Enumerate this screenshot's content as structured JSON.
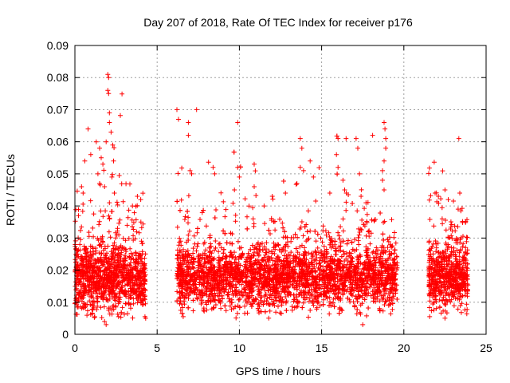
{
  "chart_data": {
    "type": "scatter",
    "title": "Day 207 of 2018, Rate Of TEC Index for receiver p176",
    "xlabel": "GPS time / hours",
    "ylabel": "ROTI / TECUs",
    "xlim": [
      0,
      25
    ],
    "ylim": [
      0,
      0.09
    ],
    "x_ticks": [
      0,
      5,
      10,
      15,
      20,
      25
    ],
    "y_ticks": [
      0,
      0.01,
      0.02,
      0.03,
      0.04,
      0.05,
      0.06,
      0.07,
      0.08,
      0.09
    ],
    "x_tick_labels": [
      "0",
      "5",
      "10",
      "15",
      "20",
      "25"
    ],
    "y_tick_labels": [
      "0",
      "0.01",
      "0.02",
      "0.03",
      "0.04",
      "0.05",
      "0.06",
      "0.07",
      "0.08",
      "0.09"
    ],
    "grid": true,
    "marker": "+",
    "color": "#ff0000",
    "series": [
      {
        "name": "ROTI",
        "segments": [
          {
            "x_start": 0.0,
            "x_end": 4.3,
            "baseline": 0.017,
            "spread": 0.009
          },
          {
            "x_start": 6.2,
            "x_end": 19.6,
            "baseline": 0.017,
            "spread": 0.008
          },
          {
            "x_start": 21.5,
            "x_end": 23.9,
            "baseline": 0.017,
            "spread": 0.008
          }
        ],
        "points": [
          [
            0.6,
            0.054
          ],
          [
            0.4,
            0.046
          ],
          [
            0.5,
            0.044
          ],
          [
            0.8,
            0.064
          ],
          [
            1.3,
            0.06
          ],
          [
            1.5,
            0.058
          ],
          [
            1.6,
            0.055
          ],
          [
            1.7,
            0.053
          ],
          [
            1.8,
            0.046
          ],
          [
            1.4,
            0.05
          ],
          [
            1.5,
            0.047
          ],
          [
            1.9,
            0.06
          ],
          [
            2.0,
            0.081
          ],
          [
            2.05,
            0.08
          ],
          [
            2.0,
            0.076
          ],
          [
            2.05,
            0.075
          ],
          [
            2.1,
            0.069
          ],
          [
            2.1,
            0.066
          ],
          [
            2.2,
            0.063
          ],
          [
            2.3,
            0.059
          ],
          [
            2.35,
            0.054
          ],
          [
            2.25,
            0.049
          ],
          [
            2.4,
            0.044
          ],
          [
            2.1,
            0.041
          ],
          [
            3.8,
            0.043
          ],
          [
            4.0,
            0.042
          ],
          [
            3.5,
            0.04
          ],
          [
            0.2,
            0.03
          ],
          [
            0.3,
            0.028
          ],
          [
            6.2,
            0.07
          ],
          [
            6.3,
            0.067
          ],
          [
            6.9,
            0.066
          ],
          [
            6.9,
            0.062
          ],
          [
            7.4,
            0.07
          ],
          [
            7.0,
            0.051
          ],
          [
            7.1,
            0.05
          ],
          [
            8.4,
            0.052
          ],
          [
            8.5,
            0.05
          ],
          [
            9.9,
            0.066
          ],
          [
            9.9,
            0.052
          ],
          [
            10.0,
            0.049
          ],
          [
            9.7,
            0.045
          ],
          [
            10.9,
            0.053
          ],
          [
            10.9,
            0.046
          ],
          [
            13.7,
            0.061
          ],
          [
            13.8,
            0.058
          ],
          [
            13.7,
            0.052
          ],
          [
            13.9,
            0.051
          ],
          [
            13.5,
            0.047
          ],
          [
            14.3,
            0.054
          ],
          [
            14.5,
            0.049
          ],
          [
            16.0,
            0.061
          ],
          [
            15.9,
            0.056
          ],
          [
            16.0,
            0.052
          ],
          [
            16.3,
            0.048
          ],
          [
            16.4,
            0.045
          ],
          [
            16.5,
            0.044
          ],
          [
            17.1,
            0.061
          ],
          [
            17.2,
            0.058
          ],
          [
            17.3,
            0.05
          ],
          [
            18.1,
            0.062
          ],
          [
            18.8,
            0.066
          ],
          [
            18.85,
            0.064
          ],
          [
            18.9,
            0.061
          ],
          [
            18.9,
            0.058
          ],
          [
            18.8,
            0.054
          ],
          [
            18.7,
            0.051
          ],
          [
            18.7,
            0.048
          ],
          [
            18.8,
            0.045
          ],
          [
            17.7,
            0.041
          ],
          [
            17.4,
            0.043
          ],
          [
            15.5,
            0.044
          ],
          [
            12.8,
            0.044
          ],
          [
            12.0,
            0.043
          ],
          [
            11.5,
            0.04
          ],
          [
            21.9,
            0.044
          ],
          [
            22.1,
            0.043
          ],
          [
            22.5,
            0.045
          ],
          [
            22.7,
            0.042
          ],
          [
            23.4,
            0.044
          ],
          [
            23.3,
            0.039
          ],
          [
            1.9,
            0.003
          ],
          [
            1.8,
            0.004
          ],
          [
            17.5,
            0.003
          ],
          [
            4.3,
            0.005
          ]
        ]
      }
    ]
  }
}
